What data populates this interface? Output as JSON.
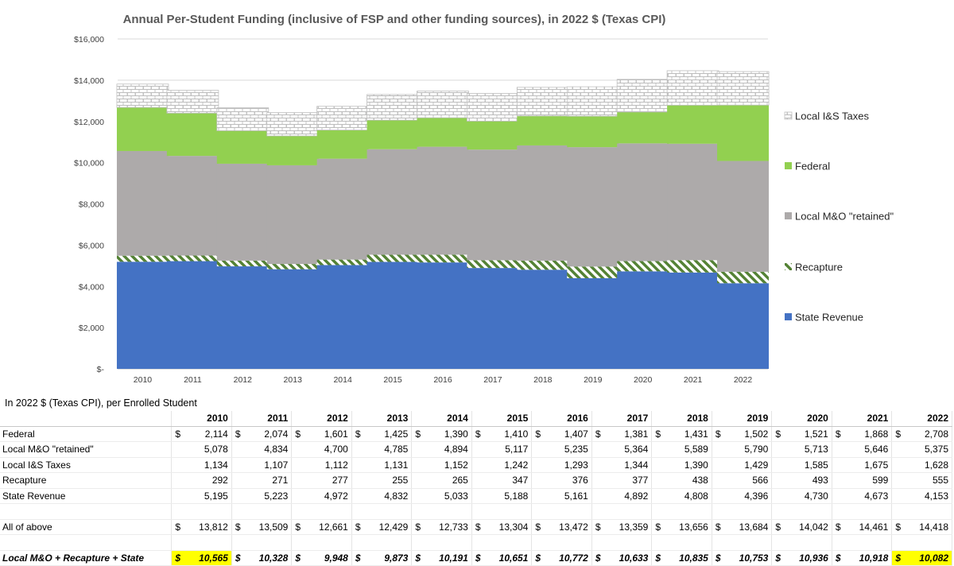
{
  "chart_data": {
    "type": "stacked-bar",
    "title": "Annual Per-Student Funding (inclusive of FSP and other funding sources), in 2022 $ (Texas CPI)",
    "categories": [
      "2010",
      "2011",
      "2012",
      "2013",
      "2014",
      "2015",
      "2016",
      "2017",
      "2018",
      "2019",
      "2020",
      "2021",
      "2022"
    ],
    "ylim": [
      0,
      16000
    ],
    "y_ticks": [
      {
        "value": 0,
        "label": "$-"
      },
      {
        "value": 2000,
        "label": "$2,000"
      },
      {
        "value": 4000,
        "label": "$4,000"
      },
      {
        "value": 6000,
        "label": "$6,000"
      },
      {
        "value": 8000,
        "label": "$8,000"
      },
      {
        "value": 10000,
        "label": "$10,000"
      },
      {
        "value": 12000,
        "label": "$12,000"
      },
      {
        "value": 14000,
        "label": "$14,000"
      },
      {
        "value": 16000,
        "label": "$16,000"
      }
    ],
    "gridlines": true,
    "legend_position": "right",
    "series": [
      {
        "name": "State Revenue",
        "color": "#4472C4",
        "pattern": "solid",
        "values": [
          5195,
          5223,
          4972,
          4832,
          5033,
          5188,
          5161,
          4892,
          4808,
          4396,
          4730,
          4673,
          4153
        ]
      },
      {
        "name": "Recapture",
        "color": "#548235",
        "pattern": "diagonal",
        "values": [
          292,
          271,
          277,
          255,
          265,
          347,
          376,
          377,
          438,
          566,
          493,
          599,
          555
        ]
      },
      {
        "name": "Local M&O \"retained\"",
        "color": "#ADAAAA",
        "pattern": "solid",
        "values": [
          5078,
          4834,
          4700,
          4785,
          4894,
          5117,
          5235,
          5364,
          5589,
          5790,
          5713,
          5646,
          5375
        ]
      },
      {
        "name": "Federal",
        "color": "#92D050",
        "pattern": "solid",
        "values": [
          2114,
          2074,
          1601,
          1425,
          1390,
          1410,
          1407,
          1381,
          1431,
          1502,
          1521,
          1868,
          2708
        ]
      },
      {
        "name": "Local I&S Taxes",
        "color": "#BFBFBF",
        "pattern": "brick",
        "values": [
          1134,
          1107,
          1112,
          1131,
          1152,
          1242,
          1293,
          1344,
          1390,
          1429,
          1585,
          1675,
          1628
        ]
      }
    ],
    "legend_order": [
      "Local I&S Taxes",
      "Federal",
      "Local M&O \"retained\"",
      "Recapture",
      "State Revenue"
    ]
  },
  "table": {
    "caption": "In 2022 $ (Texas CPI), per Enrolled Student",
    "years": [
      "2010",
      "2011",
      "2012",
      "2013",
      "2014",
      "2015",
      "2016",
      "2017",
      "2018",
      "2019",
      "2020",
      "2021",
      "2022"
    ],
    "rows": [
      {
        "label": "Federal",
        "dollar": true,
        "values": [
          "2,114",
          "2,074",
          "1,601",
          "1,425",
          "1,390",
          "1,410",
          "1,407",
          "1,381",
          "1,431",
          "1,502",
          "1,521",
          "1,868",
          "2,708"
        ]
      },
      {
        "label": "Local M&O \"retained\"",
        "dollar": false,
        "values": [
          "5,078",
          "4,834",
          "4,700",
          "4,785",
          "4,894",
          "5,117",
          "5,235",
          "5,364",
          "5,589",
          "5,790",
          "5,713",
          "5,646",
          "5,375"
        ]
      },
      {
        "label": "Local I&S Taxes",
        "dollar": false,
        "values": [
          "1,134",
          "1,107",
          "1,112",
          "1,131",
          "1,152",
          "1,242",
          "1,293",
          "1,344",
          "1,390",
          "1,429",
          "1,585",
          "1,675",
          "1,628"
        ]
      },
      {
        "label": "Recapture",
        "dollar": false,
        "values": [
          "292",
          "271",
          "277",
          "255",
          "265",
          "347",
          "376",
          "377",
          "438",
          "566",
          "493",
          "599",
          "555"
        ]
      },
      {
        "label": "State Revenue",
        "dollar": false,
        "values": [
          "5,195",
          "5,223",
          "4,972",
          "4,832",
          "5,033",
          "5,188",
          "5,161",
          "4,892",
          "4,808",
          "4,396",
          "4,730",
          "4,673",
          "4,153"
        ]
      }
    ],
    "total_row": {
      "label": "All of above",
      "values": [
        "13,812",
        "13,509",
        "12,661",
        "12,429",
        "12,733",
        "13,304",
        "13,472",
        "13,359",
        "13,656",
        "13,684",
        "14,042",
        "14,461",
        "14,418"
      ]
    },
    "summary_row": {
      "label": "Local M&O + Recapture + State",
      "values": [
        "10,565",
        "10,328",
        "9,948",
        "9,873",
        "10,191",
        "10,651",
        "10,772",
        "10,633",
        "10,835",
        "10,753",
        "10,936",
        "10,918",
        "10,082"
      ],
      "highlight": [
        "2010",
        "2022"
      ],
      "highlight_color": "#FFFF00"
    },
    "currency_symbol": "$"
  }
}
